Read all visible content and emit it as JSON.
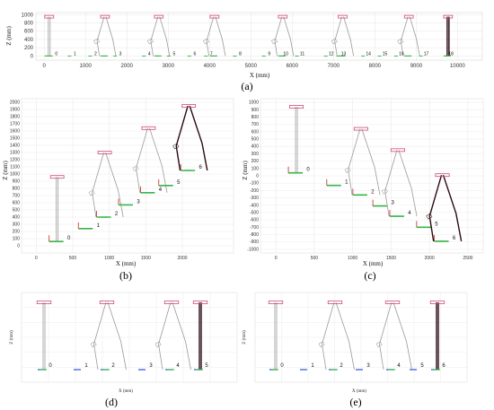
{
  "chart_data": [
    {
      "panel": "(a)",
      "type": "line",
      "xlabel": "X (mm)",
      "ylabel": "Z (mm)",
      "xlim": [
        -200,
        10600
      ],
      "ylim": [
        -100,
        1050
      ],
      "x_ticks": [
        "0",
        "1000",
        "2000",
        "3000",
        "4000",
        "5000",
        "6000",
        "7000",
        "8000",
        "9000",
        "10000"
      ],
      "y_ticks": [
        "0",
        "200",
        "400",
        "600",
        "800",
        "1000"
      ],
      "grid": true,
      "step_labels": [
        "0",
        "1",
        "2",
        "3",
        "4",
        "5",
        "6",
        "7",
        "8",
        "9",
        "10",
        "11",
        "12",
        "13",
        "14",
        "15",
        "16",
        "17",
        "18"
      ],
      "label_positions": [
        [
          250,
          20
        ],
        [
          700,
          20
        ],
        [
          1200,
          20
        ],
        [
          1800,
          20
        ],
        [
          2500,
          20
        ],
        [
          3100,
          20
        ],
        [
          3600,
          20
        ],
        [
          4000,
          20
        ],
        [
          4700,
          20
        ],
        [
          5400,
          20
        ],
        [
          5800,
          20
        ],
        [
          6200,
          20
        ],
        [
          6900,
          20
        ],
        [
          7200,
          20
        ],
        [
          7800,
          20
        ],
        [
          8200,
          20
        ],
        [
          8600,
          20
        ],
        [
          9200,
          20
        ],
        [
          9800,
          20
        ]
      ],
      "poses": [
        {
          "x": 100,
          "stance": "standing",
          "color": "gray"
        },
        {
          "x": 1450,
          "stance": "step",
          "color": "gray"
        },
        {
          "x": 2750,
          "stance": "step",
          "color": "gray"
        },
        {
          "x": 4100,
          "stance": "step",
          "color": "gray"
        },
        {
          "x": 5750,
          "stance": "step",
          "color": "gray"
        },
        {
          "x": 7200,
          "stance": "step",
          "color": "gray"
        },
        {
          "x": 8800,
          "stance": "step",
          "color": "gray"
        },
        {
          "x": 9750,
          "stance": "standing",
          "color": "dark"
        }
      ]
    },
    {
      "panel": "(b)",
      "type": "line",
      "xlabel": "X (mm)",
      "ylabel": "Z (mm)",
      "xlim": [
        -200,
        2700
      ],
      "ylim": [
        -100,
        2050
      ],
      "x_ticks": [
        "0",
        "500",
        "1000",
        "1500",
        "2000"
      ],
      "y_ticks": [
        "0",
        "100",
        "200",
        "300",
        "400",
        "500",
        "600",
        "700",
        "800",
        "900",
        "1000",
        "1100",
        "1200",
        "1300",
        "1400",
        "1500",
        "1600",
        "1700",
        "1800",
        "1900",
        "2000"
      ],
      "grid": true,
      "step_labels": [
        "0",
        "1",
        "2",
        "3",
        "4",
        "5",
        "6"
      ],
      "steps": [
        {
          "label": "0",
          "x": 300,
          "z": 60
        },
        {
          "label": "1",
          "x": 700,
          "z": 240
        },
        {
          "label": "2",
          "x": 950,
          "z": 400
        },
        {
          "label": "3",
          "x": 1250,
          "z": 570
        },
        {
          "label": "4",
          "x": 1550,
          "z": 740
        },
        {
          "label": "5",
          "x": 1800,
          "z": 840
        },
        {
          "label": "6",
          "x": 2100,
          "z": 1050
        }
      ]
    },
    {
      "panel": "(c)",
      "type": "line",
      "xlabel": "X (mm)",
      "ylabel": "Z (mm)",
      "xlim": [
        -200,
        2700
      ],
      "ylim": [
        -1050,
        1050
      ],
      "x_ticks": [
        "0",
        "500",
        "1000",
        "1500",
        "2000",
        "2500"
      ],
      "y_ticks": [
        "-1000",
        "-900",
        "-800",
        "-700",
        "-600",
        "-500",
        "-400",
        "-300",
        "-200",
        "-100",
        "0",
        "100",
        "200",
        "300",
        "400",
        "500",
        "600",
        "700",
        "800",
        "900",
        "1000"
      ],
      "grid": true,
      "step_labels": [
        "0",
        "1",
        "2",
        "3",
        "4",
        "5",
        "6"
      ],
      "steps": [
        {
          "label": "0",
          "x": 280,
          "z": 40
        },
        {
          "label": "1",
          "x": 780,
          "z": -130
        },
        {
          "label": "2",
          "x": 1120,
          "z": -260
        },
        {
          "label": "3",
          "x": 1380,
          "z": -410
        },
        {
          "label": "4",
          "x": 1600,
          "z": -550
        },
        {
          "label": "5",
          "x": 1950,
          "z": -700
        },
        {
          "label": "6",
          "x": 2180,
          "z": -890
        }
      ]
    },
    {
      "panel": "(d)",
      "type": "line",
      "xlabel": "X (mm)",
      "ylabel": "Z (mm)",
      "step_labels": [
        "0",
        "1",
        "2",
        "3",
        "4",
        "5"
      ],
      "grid": true
    },
    {
      "panel": "(e)",
      "type": "line",
      "xlabel": "X (mm)",
      "ylabel": "Z (mm)",
      "step_labels": [
        "0",
        "1",
        "2",
        "3",
        "4",
        "5",
        "6"
      ],
      "grid": true
    }
  ],
  "panel_labels": [
    "(a)",
    "(b)",
    "(c)",
    "(d)",
    "(e)"
  ],
  "colors": {
    "leg_gray": "#9a9a9a",
    "leg_dark": "#2a0a12",
    "pelvis_pink": "#d04a7a",
    "foot_green": "#39b54a",
    "foot_blue": "#2b4fd0",
    "foot_red": "#d22020",
    "grid": "#e6e6e6"
  }
}
